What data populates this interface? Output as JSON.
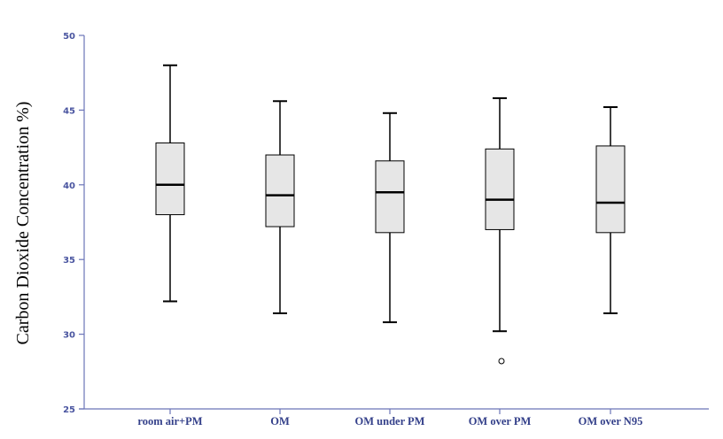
{
  "chart_data": {
    "type": "boxplot",
    "title": "",
    "xlabel": "",
    "ylabel": "Carbon Dioxide Concentration %)",
    "ylim": [
      25,
      50
    ],
    "yticks": [
      "25",
      "30",
      "35",
      "40",
      "45",
      "50"
    ],
    "grid": false,
    "categories": [
      "room air+PM",
      "OM",
      "OM under PM",
      "OM over PM",
      "OM over N95"
    ],
    "boxes": [
      {
        "min": 32.2,
        "q1": 38.0,
        "median": 40.0,
        "q3": 42.8,
        "max": 48.0,
        "outliers": []
      },
      {
        "min": 31.4,
        "q1": 37.2,
        "median": 39.3,
        "q3": 42.0,
        "max": 45.6,
        "outliers": []
      },
      {
        "min": 30.8,
        "q1": 36.8,
        "median": 39.5,
        "q3": 41.6,
        "max": 44.8,
        "outliers": []
      },
      {
        "min": 30.2,
        "q1": 37.0,
        "median": 39.0,
        "q3": 42.4,
        "max": 45.8,
        "outliers": [
          28.2
        ]
      },
      {
        "min": 31.4,
        "q1": 36.8,
        "median": 38.8,
        "q3": 42.6,
        "max": 45.2,
        "outliers": []
      }
    ],
    "colors": {
      "box_fill": "#e6e6e6",
      "axis": "#6b74b8",
      "line": "#000000"
    }
  }
}
